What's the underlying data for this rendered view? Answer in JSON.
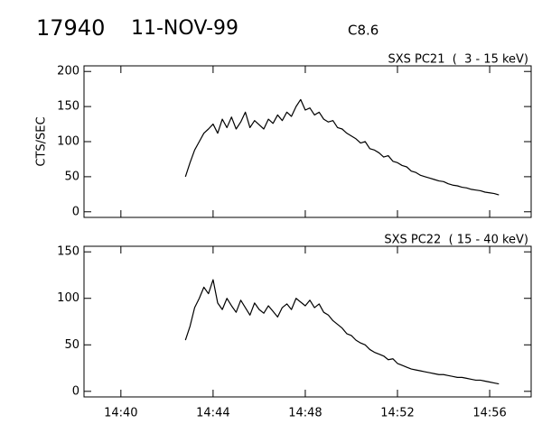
{
  "header": {
    "id": "17940",
    "date": "11-NOV-99",
    "class": "C8.6"
  },
  "chart_data": [
    {
      "type": "line",
      "title": "SXS PC21  (  3 - 15 keV)",
      "y_label": "CTS/SEC",
      "color": "#000000",
      "x": [
        882.8,
        883,
        883.2,
        883.4,
        883.6,
        883.8,
        884,
        884.2,
        884.4,
        884.6,
        884.8,
        885,
        885.2,
        885.4,
        885.6,
        885.8,
        886,
        886.2,
        886.4,
        886.6,
        886.8,
        887,
        887.2,
        887.4,
        887.6,
        887.8,
        888,
        888.2,
        888.4,
        888.6,
        888.8,
        889,
        889.2,
        889.4,
        889.6,
        889.8,
        890,
        890.2,
        890.4,
        890.6,
        890.8,
        891,
        891.2,
        891.4,
        891.6,
        891.8,
        892,
        892.2,
        892.4,
        892.6,
        892.8,
        893,
        893.2,
        893.4,
        893.6,
        893.8,
        894,
        894.2,
        894.4,
        894.6,
        894.8,
        895,
        895.2,
        895.4,
        895.6,
        895.8,
        896,
        896.2,
        896.4
      ],
      "values": [
        50,
        70,
        88,
        100,
        112,
        118,
        125,
        112,
        132,
        120,
        135,
        118,
        128,
        142,
        120,
        130,
        124,
        118,
        132,
        126,
        138,
        130,
        142,
        136,
        150,
        160,
        145,
        148,
        138,
        142,
        132,
        128,
        130,
        120,
        118,
        112,
        108,
        104,
        98,
        100,
        90,
        88,
        84,
        78,
        80,
        72,
        70,
        66,
        64,
        58,
        56,
        52,
        50,
        48,
        46,
        44,
        43,
        40,
        38,
        37,
        35,
        34,
        32,
        31,
        30,
        28,
        27,
        26,
        24
      ],
      "xlim": [
        878.4,
        897.8
      ],
      "ylim": [
        -8,
        208
      ],
      "yticks": [
        0,
        50,
        100,
        150,
        200
      ]
    },
    {
      "type": "line",
      "title": "SXS PC22  ( 15 - 40 keV)",
      "color": "#000000",
      "x": [
        882.8,
        883,
        883.2,
        883.4,
        883.6,
        883.8,
        884,
        884.2,
        884.4,
        884.6,
        884.8,
        885,
        885.2,
        885.4,
        885.6,
        885.8,
        886,
        886.2,
        886.4,
        886.6,
        886.8,
        887,
        887.2,
        887.4,
        887.6,
        887.8,
        888,
        888.2,
        888.4,
        888.6,
        888.8,
        889,
        889.2,
        889.4,
        889.6,
        889.8,
        890,
        890.2,
        890.4,
        890.6,
        890.8,
        891,
        891.2,
        891.4,
        891.6,
        891.8,
        892,
        892.2,
        892.4,
        892.6,
        892.8,
        893,
        893.2,
        893.4,
        893.6,
        893.8,
        894,
        894.2,
        894.4,
        894.6,
        894.8,
        895,
        895.2,
        895.4,
        895.6,
        895.8,
        896,
        896.2,
        896.4
      ],
      "values": [
        55,
        70,
        90,
        100,
        112,
        105,
        120,
        95,
        88,
        100,
        92,
        85,
        98,
        90,
        82,
        95,
        88,
        84,
        92,
        86,
        80,
        90,
        94,
        88,
        100,
        96,
        92,
        98,
        90,
        94,
        85,
        82,
        76,
        72,
        68,
        62,
        60,
        55,
        52,
        50,
        45,
        42,
        40,
        38,
        34,
        35,
        30,
        28,
        26,
        24,
        23,
        22,
        21,
        20,
        19,
        18,
        18,
        17,
        16,
        15,
        15,
        14,
        13,
        12,
        12,
        11,
        10,
        9,
        8
      ],
      "xlim": [
        878.4,
        897.8
      ],
      "ylim": [
        -6,
        156
      ],
      "yticks": [
        0,
        50,
        100,
        150
      ],
      "xticks": [
        {
          "value": 880,
          "label": "14:40"
        },
        {
          "value": 884,
          "label": "14:44"
        },
        {
          "value": 888,
          "label": "14:48"
        },
        {
          "value": 892,
          "label": "14:52"
        },
        {
          "value": 896,
          "label": "14:56"
        }
      ]
    }
  ]
}
